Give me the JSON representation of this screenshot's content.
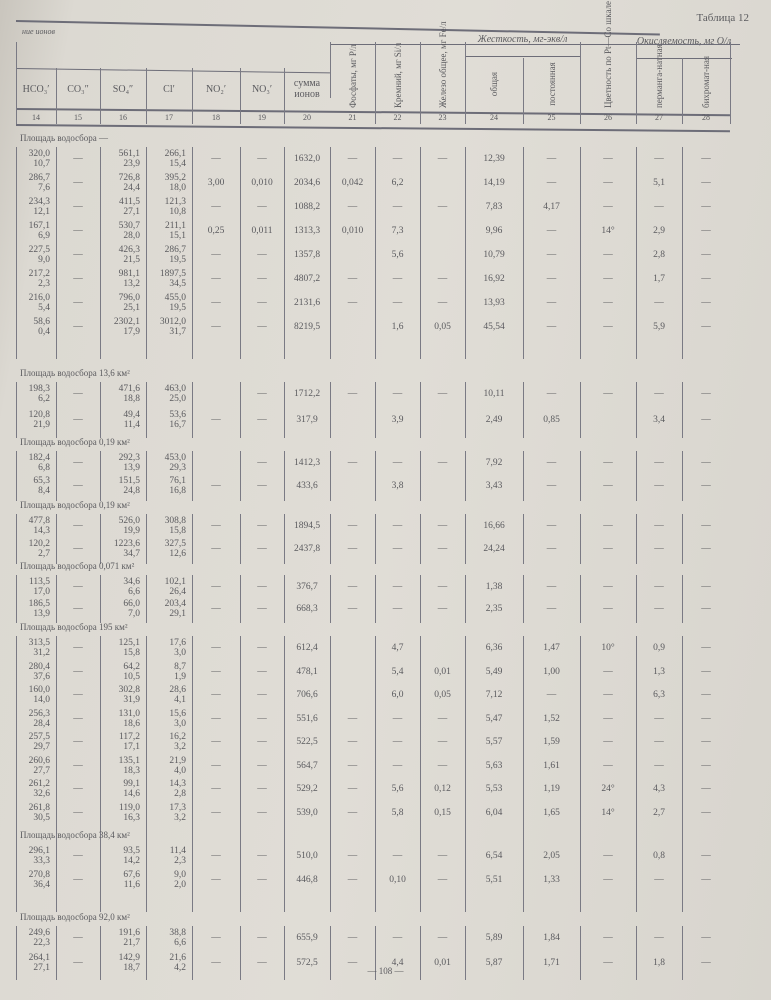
{
  "header": {
    "table_title": "Таблица 12",
    "ion_group": "ние ионов",
    "columns": [
      "HCO₃′",
      "CO₃″",
      "SO₄″",
      "Cl′",
      "NO₂′",
      "NO₃′",
      "сумма ионов",
      "Фосфаты, мг P/л",
      "Кремний, мг Si/л",
      "Железо общее, мг Fe/л",
      "общая",
      "постоянная",
      "Цветность по Pt—Co шкале",
      "перманга-натная",
      "бихромат-ная"
    ],
    "hardness_group": "Жесткость, мг-экв/л",
    "oxidizability_group": "Окисляемость, мг O/л",
    "numbers": [
      "14",
      "15",
      "16",
      "17",
      "18",
      "19",
      "20",
      "21",
      "22",
      "23",
      "24",
      "25",
      "26",
      "27",
      "28"
    ]
  },
  "sections": [
    {
      "label": "Площадь водосбора —",
      "rows": [
        [
          [
            "320,0",
            "10,7"
          ],
          "—",
          [
            "561,1",
            "23,9"
          ],
          [
            "266,1",
            "15,4"
          ],
          "—",
          "—",
          "1632,0",
          "—",
          "—",
          "—",
          "12,39",
          "—",
          "—",
          "—",
          "—"
        ],
        [
          [
            "286,7",
            "7,6"
          ],
          "—",
          [
            "726,8",
            "24,4"
          ],
          [
            "395,2",
            "18,0"
          ],
          "3,00",
          "0,010",
          "2034,6",
          "0,042",
          "6,2",
          "",
          "14,19",
          "—",
          "—",
          "5,1",
          "—"
        ],
        [
          [
            "234,3",
            "12,1"
          ],
          "—",
          [
            "411,5",
            "27,1"
          ],
          [
            "121,3",
            "10,8"
          ],
          "—",
          "—",
          "1088,2",
          "—",
          "—",
          "—",
          "7,83",
          "4,17",
          "—",
          "—",
          "—"
        ],
        [
          [
            "167,1",
            "6,9"
          ],
          "—",
          [
            "530,7",
            "28,0"
          ],
          [
            "211,1",
            "15,1"
          ],
          "0,25",
          "0,011",
          "1313,3",
          "0,010",
          "7,3",
          "",
          "9,96",
          "—",
          "14°",
          "2,9",
          "—"
        ],
        [
          [
            "227,5",
            "9,0"
          ],
          "—",
          [
            "426,3",
            "21,5"
          ],
          [
            "286,7",
            "19,5"
          ],
          "—",
          "—",
          "1357,8",
          "",
          "5,6",
          "",
          "10,79",
          "—",
          "—",
          "2,8",
          "—"
        ],
        [
          [
            "217,2",
            "2,3"
          ],
          "—",
          [
            "981,1",
            "13,2"
          ],
          [
            "1897,5",
            "34,5"
          ],
          "—",
          "—",
          "4807,2",
          "—",
          "—",
          "—",
          "16,92",
          "—",
          "—",
          "1,7",
          "—"
        ],
        [
          [
            "216,0",
            "5,4"
          ],
          "—",
          [
            "796,0",
            "25,1"
          ],
          [
            "455,0",
            "19,5"
          ],
          "—",
          "—",
          "2131,6",
          "—",
          "—",
          "—",
          "13,93",
          "—",
          "—",
          "—",
          "—"
        ],
        [
          [
            "58,6",
            "0,4"
          ],
          "—",
          [
            "2302,1",
            "17,9"
          ],
          [
            "3012,0",
            "31,7"
          ],
          "—",
          "—",
          "8219,5",
          "",
          "1,6",
          "0,05",
          "45,54",
          "—",
          "—",
          "5,9",
          "—"
        ]
      ]
    },
    {
      "label": "Площадь водосбора 13,6 км²",
      "rows": [
        [
          [
            "198,3",
            "6,2"
          ],
          "—",
          [
            "471,6",
            "18,8"
          ],
          [
            "463,0",
            "25,0"
          ],
          "",
          "—",
          "1712,2",
          "—",
          "—",
          "—",
          "10,11",
          "—",
          "—",
          "—",
          "—"
        ],
        [
          [
            "120,8",
            "21,9"
          ],
          "—",
          [
            "49,4",
            "11,4"
          ],
          [
            "53,6",
            "16,7"
          ],
          "—",
          "—",
          "317,9",
          "",
          "3,9",
          "",
          "2,49",
          "0,85",
          "",
          "3,4",
          "—"
        ]
      ]
    },
    {
      "label": "Площадь водосбора 0,19 км²",
      "rows": [
        [
          [
            "182,4",
            "6,8"
          ],
          "—",
          [
            "292,3",
            "13,9"
          ],
          [
            "453,0",
            "29,3"
          ],
          "",
          "—",
          "1412,3",
          "—",
          "—",
          "—",
          "7,92",
          "—",
          "—",
          "—",
          "—"
        ],
        [
          [
            "65,3",
            "8,4"
          ],
          "—",
          [
            "151,5",
            "24,8"
          ],
          [
            "76,1",
            "16,8"
          ],
          "—",
          "—",
          "433,6",
          "",
          "3,8",
          "",
          "3,43",
          "—",
          "—",
          "—",
          "—"
        ]
      ]
    },
    {
      "label": "Площадь водосбора 0,19 км²",
      "rows": [
        [
          [
            "477,8",
            "14,3"
          ],
          "—",
          [
            "526,0",
            "19,9"
          ],
          [
            "308,8",
            "15,8"
          ],
          "—",
          "—",
          "1894,5",
          "—",
          "—",
          "—",
          "16,66",
          "—",
          "—",
          "—",
          "—"
        ],
        [
          [
            "120,2",
            "2,7"
          ],
          "—",
          [
            "1223,6",
            "34,7"
          ],
          [
            "327,5",
            "12,6"
          ],
          "—",
          "—",
          "2437,8",
          "—",
          "—",
          "—",
          "24,24",
          "—",
          "—",
          "—",
          "—"
        ]
      ]
    },
    {
      "label": "Площадь водосбора 0,071 км²",
      "rows": [
        [
          [
            "113,5",
            "17,0"
          ],
          "—",
          [
            "34,6",
            "6,6"
          ],
          [
            "102,1",
            "26,4"
          ],
          "—",
          "—",
          "376,7",
          "—",
          "—",
          "—",
          "1,38",
          "—",
          "—",
          "—",
          "—"
        ],
        [
          [
            "186,5",
            "13,9"
          ],
          "—",
          [
            "66,0",
            "7,0"
          ],
          [
            "203,4",
            "29,1"
          ],
          "—",
          "—",
          "668,3",
          "—",
          "—",
          "—",
          "2,35",
          "—",
          "—",
          "—",
          "—"
        ]
      ]
    },
    {
      "label": "Площадь водосбора 195 км²",
      "rows": [
        [
          [
            "313,5",
            "31,2"
          ],
          "—",
          [
            "125,1",
            "15,8"
          ],
          [
            "17,6",
            "3,0"
          ],
          "—",
          "—",
          "612,4",
          "",
          "4,7",
          "",
          "6,36",
          "1,47",
          "10°",
          "0,9",
          "—"
        ],
        [
          [
            "280,4",
            "37,6"
          ],
          "—",
          [
            "64,2",
            "10,5"
          ],
          [
            "8,7",
            "1,9"
          ],
          "—",
          "—",
          "478,1",
          "",
          "5,4",
          "0,01",
          "5,49",
          "1,00",
          "—",
          "1,3",
          "—"
        ],
        [
          [
            "160,0",
            "14,0"
          ],
          "—",
          [
            "302,8",
            "31,9"
          ],
          [
            "28,6",
            "4,1"
          ],
          "—",
          "—",
          "706,6",
          "",
          "6,0",
          "0,05",
          "7,12",
          "—",
          "—",
          "6,3",
          "—"
        ],
        [
          [
            "256,3",
            "28,4"
          ],
          "—",
          [
            "131,0",
            "18,6"
          ],
          [
            "15,6",
            "3,0"
          ],
          "—",
          "—",
          "551,6",
          "—",
          "—",
          "—",
          "5,47",
          "1,52",
          "—",
          "—",
          "—"
        ],
        [
          [
            "257,5",
            "29,7"
          ],
          "—",
          [
            "117,2",
            "17,1"
          ],
          [
            "16,2",
            "3,2"
          ],
          "—",
          "—",
          "522,5",
          "—",
          "—",
          "—",
          "5,57",
          "1,59",
          "—",
          "—",
          "—"
        ],
        [
          [
            "260,6",
            "27,7"
          ],
          "—",
          [
            "135,1",
            "18,3"
          ],
          [
            "21,9",
            "4,0"
          ],
          "—",
          "—",
          "564,7",
          "—",
          "—",
          "—",
          "5,63",
          "1,61",
          "—",
          "—",
          "—"
        ],
        [
          [
            "261,2",
            "32,6"
          ],
          "—",
          [
            "99,1",
            "14,6"
          ],
          [
            "14,3",
            "2,8"
          ],
          "—",
          "—",
          "529,2",
          "—",
          "5,6",
          "0,12",
          "5,53",
          "1,19",
          "24°",
          "4,3",
          "—"
        ],
        [
          [
            "261,8",
            "30,5"
          ],
          "—",
          [
            "119,0",
            "16,3"
          ],
          [
            "17,3",
            "3,2"
          ],
          "—",
          "—",
          "539,0",
          "—",
          "5,8",
          "0,15",
          "6,04",
          "1,65",
          "14°",
          "2,7",
          "—"
        ]
      ]
    },
    {
      "label": "Площадь водосбора 38,4 км²",
      "rows": [
        [
          [
            "296,1",
            "33,3"
          ],
          "—",
          [
            "93,5",
            "14,2"
          ],
          [
            "11,4",
            "2,3"
          ],
          "—",
          "—",
          "510,0",
          "—",
          "—",
          "—",
          "6,54",
          "2,05",
          "—",
          "0,8",
          "—"
        ],
        [
          [
            "270,8",
            "36,4"
          ],
          "—",
          [
            "67,6",
            "11,6"
          ],
          [
            "9,0",
            "2,0"
          ],
          "—",
          "—",
          "446,8",
          "—",
          "0,10",
          "—",
          "5,51",
          "1,33",
          "—",
          "—",
          "—"
        ]
      ]
    },
    {
      "label": "Площадь водосбора 92,0 км²",
      "rows": [
        [
          [
            "249,6",
            "22,3"
          ],
          "—",
          [
            "191,6",
            "21,7"
          ],
          [
            "38,8",
            "6,6"
          ],
          "—",
          "—",
          "655,9",
          "—",
          "—",
          "—",
          "5,89",
          "1,84",
          "—",
          "—",
          "—"
        ],
        [
          [
            "264,1",
            "27,1"
          ],
          "—",
          [
            "142,9",
            "18,7"
          ],
          [
            "21,6",
            "4,2"
          ],
          "—",
          "—",
          "572,5",
          "—",
          "4,4",
          "0,01",
          "5,87",
          "1,71",
          "—",
          "1,8",
          "—"
        ]
      ]
    }
  ],
  "footer": {
    "page_number": "— 108 —"
  }
}
